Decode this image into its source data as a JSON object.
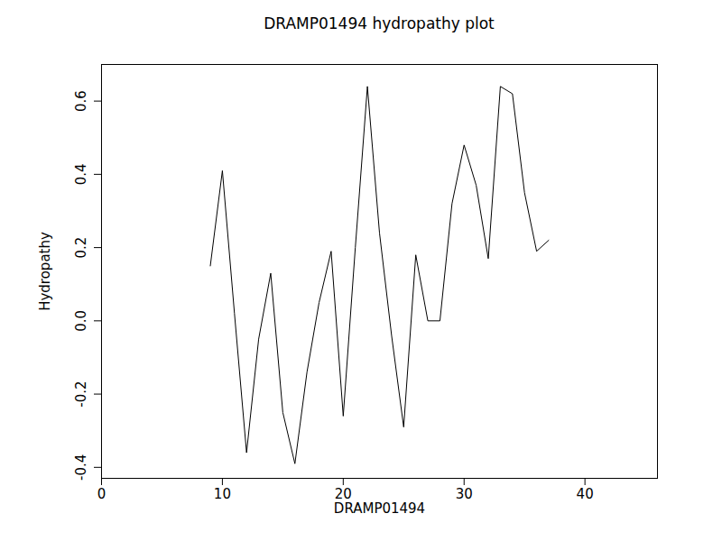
{
  "chart_data": {
    "type": "line",
    "title": "DRAMP01494 hydropathy plot",
    "x_label": "DRAMP01494",
    "y_label": "Hydropathy",
    "x": [
      9,
      10,
      11,
      12,
      13,
      14,
      15,
      16,
      17,
      18,
      19,
      20,
      21,
      22,
      23,
      24,
      25,
      26,
      27,
      28,
      29,
      30,
      31,
      32,
      33,
      34,
      35,
      36,
      37
    ],
    "values": [
      0.15,
      0.41,
      0.02,
      -0.36,
      -0.05,
      0.13,
      -0.25,
      -0.39,
      -0.14,
      0.05,
      0.19,
      -0.26,
      0.2,
      0.64,
      0.24,
      -0.04,
      -0.29,
      0.18,
      0.0,
      0.0,
      0.32,
      0.48,
      0.37,
      0.17,
      0.64,
      0.62,
      0.35,
      0.19,
      0.22
    ],
    "color": "#000000",
    "xlim": [
      0,
      46
    ],
    "xticks": [
      0,
      10,
      20,
      30,
      40
    ],
    "ylim": [
      -0.43,
      0.7
    ],
    "yticks": [
      {
        "value": -0.4,
        "label": "-0.4"
      },
      {
        "value": -0.2,
        "label": "-0.2"
      },
      {
        "value": 0,
        "label": "0.0"
      },
      {
        "value": 0.2,
        "label": "0.2"
      },
      {
        "value": 0.4,
        "label": "0.4"
      },
      {
        "value": 0.6,
        "label": "0.6"
      }
    ],
    "grid": false
  }
}
